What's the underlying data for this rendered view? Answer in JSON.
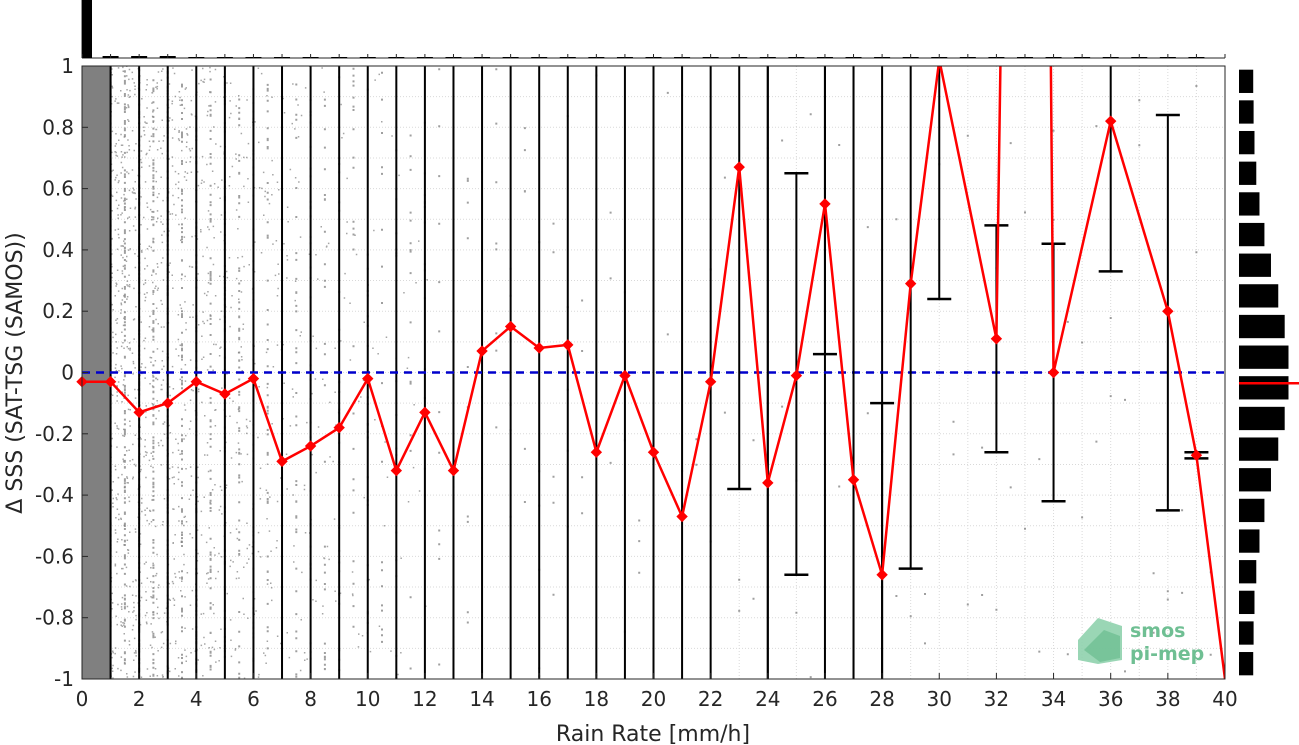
{
  "chart_data": {
    "type": "line",
    "xlabel": "Rain Rate [mm/h]",
    "ylabel": "Δ SSS (SAT-TSG (SAMOS))",
    "xlim": [
      0,
      40
    ],
    "ylim": [
      -1,
      1
    ],
    "x_ticks": [
      "0",
      "2",
      "4",
      "6",
      "8",
      "10",
      "12",
      "14",
      "16",
      "18",
      "20",
      "22",
      "24",
      "26",
      "28",
      "30",
      "32",
      "34",
      "36",
      "38",
      "40"
    ],
    "y_ticks": [
      "-1",
      "-0.8",
      "-0.6",
      "-0.4",
      "-0.2",
      "0",
      "0.2",
      "0.4",
      "0.6",
      "0.8",
      "1"
    ],
    "grid": true,
    "zero_line": {
      "value": 0,
      "color": "#0000cc",
      "style": "dashed"
    },
    "series": [
      {
        "type": "line",
        "color": "#ff0000",
        "marker": "diamond",
        "x": [
          0,
          1,
          2,
          3,
          4,
          5,
          6,
          7,
          8,
          9,
          10,
          11,
          12,
          13,
          14,
          15,
          16,
          17,
          18,
          19,
          20,
          21,
          22,
          23,
          24,
          25,
          26,
          27,
          28,
          29,
          30,
          32,
          34,
          36,
          38,
          39,
          40
        ],
        "values": [
          -0.03,
          -0.03,
          -0.13,
          -0.1,
          -0.03,
          -0.07,
          -0.02,
          -0.29,
          -0.24,
          -0.18,
          -0.02,
          -0.32,
          -0.13,
          -0.32,
          0.07,
          0.15,
          0.08,
          0.09,
          -0.26,
          -0.01,
          -0.26,
          -0.47,
          -0.03,
          0.67,
          -0.36,
          -0.01,
          0.55,
          -0.35,
          -0.66,
          0.29,
          1.02,
          0.11,
          0.0,
          0.82,
          0.2,
          -0.27,
          -1.0
        ]
      }
    ],
    "error_bars": [
      {
        "x": 23,
        "low": -0.38,
        "high": 1.0
      },
      {
        "x": 24,
        "low": -1.0,
        "high": 1.0
      },
      {
        "x": 25,
        "low": -0.66,
        "high": 0.65
      },
      {
        "x": 26,
        "low": 0.06,
        "high": 1.0
      },
      {
        "x": 27,
        "low": -1.0,
        "high": 1.0
      },
      {
        "x": 28,
        "low": -1.0,
        "high": -0.1
      },
      {
        "x": 29,
        "low": -0.64,
        "high": 1.0
      },
      {
        "x": 30,
        "low": 0.24,
        "high": 1.0
      },
      {
        "x": 32,
        "low": -0.26,
        "high": 0.48
      },
      {
        "x": 34,
        "low": -0.42,
        "high": 0.42
      },
      {
        "x": 36,
        "low": 0.33,
        "high": 1.0
      },
      {
        "x": 38,
        "low": -0.45,
        "high": 0.84
      },
      {
        "x": 39,
        "low": -0.28,
        "high": -0.26
      }
    ],
    "spike_up": {
      "from_x": 32,
      "to_x": 34
    },
    "colors": {
      "scatter": "#808080",
      "mean": "#ff0000",
      "zero": "#0000cc",
      "errorbar": "#000000",
      "histogram": "#000000"
    }
  },
  "logo": {
    "line1": "smos",
    "line2": "pi-mep"
  }
}
